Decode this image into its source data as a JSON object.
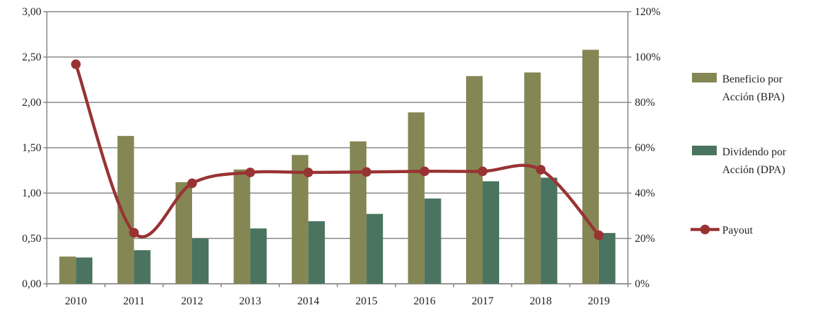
{
  "chart_data": {
    "type": "bar",
    "categories": [
      "2010",
      "2011",
      "2012",
      "2013",
      "2014",
      "2015",
      "2016",
      "2017",
      "2018",
      "2019"
    ],
    "series": [
      {
        "name": "Beneficio por Acción (BPA)",
        "name_lines": [
          "Beneficio por",
          "Acción (BPA)"
        ],
        "type": "bar",
        "axis": "left",
        "color": "#848654",
        "values": [
          0.3,
          1.63,
          1.12,
          1.26,
          1.42,
          1.57,
          1.89,
          2.29,
          2.33,
          2.58
        ]
      },
      {
        "name": "Dividendo por Acción (DPA)",
        "name_lines": [
          "Dividendo por",
          "Acción (DPA)"
        ],
        "type": "bar",
        "axis": "left",
        "color": "#4a7460",
        "values": [
          0.29,
          0.37,
          0.5,
          0.61,
          0.69,
          0.77,
          0.94,
          1.13,
          1.17,
          0.56
        ]
      },
      {
        "name": "Payout",
        "name_lines": [
          "Payout"
        ],
        "type": "line",
        "axis": "right",
        "color": "#993333",
        "values": [
          96.8,
          22.5,
          44.3,
          49.1,
          49.1,
          49.3,
          49.6,
          49.6,
          50.3,
          21.4
        ]
      }
    ],
    "ylim": [
      0,
      3
    ],
    "yticks": [
      "0,00",
      "0,50",
      "1,00",
      "1,50",
      "2,00",
      "2,50",
      "3,00"
    ],
    "y2lim": [
      0,
      120
    ],
    "y2ticks": [
      "0%",
      "20%",
      "40%",
      "60%",
      "80%",
      "100%",
      "120%"
    ],
    "grid": true,
    "legend": "right",
    "title": "",
    "xlabel": "",
    "ylabel": ""
  }
}
